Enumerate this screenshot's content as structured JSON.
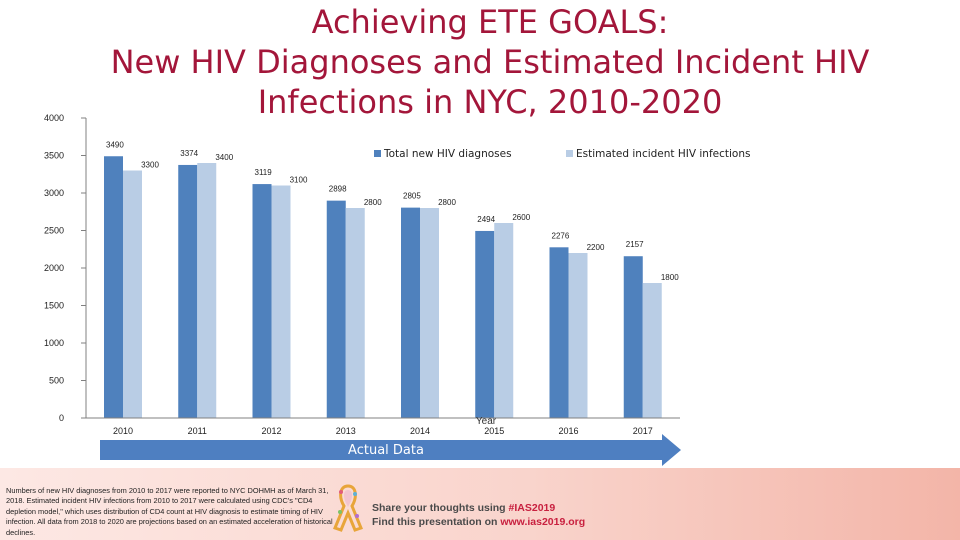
{
  "slide": {
    "title_lines": [
      "Achieving ETE GOALS:",
      "New HIV Diagnoses and Estimated Incident HIV",
      "Infections in NYC, 2010-2020"
    ],
    "arrow_label": "Actual Data",
    "year_label_partial": "Year",
    "footnote": "Numbers of new HIV diagnoses from 2010 to 2017 were reported to NYC DOHMH as of March 31, 2018. Estimated incident HIV infections from 2010 to 2017 were calculated using CDC's \"CD4 depletion model,\" which uses distribution of CD4 count at HIV diagnosis to estimate timing of HIV infection. All data from 2018 to 2020 are projections based on an estimated acceleration of historical declines.",
    "share_line1_prefix": "Share your thoughts using ",
    "share_line1_hashtag": "#IAS2019",
    "share_line2_prefix": "Find this presentation on ",
    "share_line2_url": "www.ias2019.org"
  },
  "colors": {
    "title": "#a3163a",
    "diagnoses": "#4f81bd",
    "incident": "#b9cde5",
    "arrow": "#4e7fc1"
  },
  "chart_data": {
    "type": "bar",
    "categories": [
      "2010",
      "2011",
      "2012",
      "2013",
      "2014",
      "2015",
      "2016",
      "2017"
    ],
    "series": [
      {
        "name": "Total new HIV diagnoses",
        "values": [
          3490,
          3374,
          3119,
          2898,
          2805,
          2494,
          2276,
          2157
        ]
      },
      {
        "name": "Estimated incident HIV infections",
        "values": [
          3300,
          3400,
          3100,
          2800,
          2800,
          2600,
          2200,
          1800
        ]
      }
    ],
    "ylim": [
      0,
      4000
    ],
    "yticks": [
      0,
      500,
      1000,
      1500,
      2000,
      2500,
      3000,
      3500,
      4000
    ],
    "legend_position": "top",
    "grid": false
  }
}
